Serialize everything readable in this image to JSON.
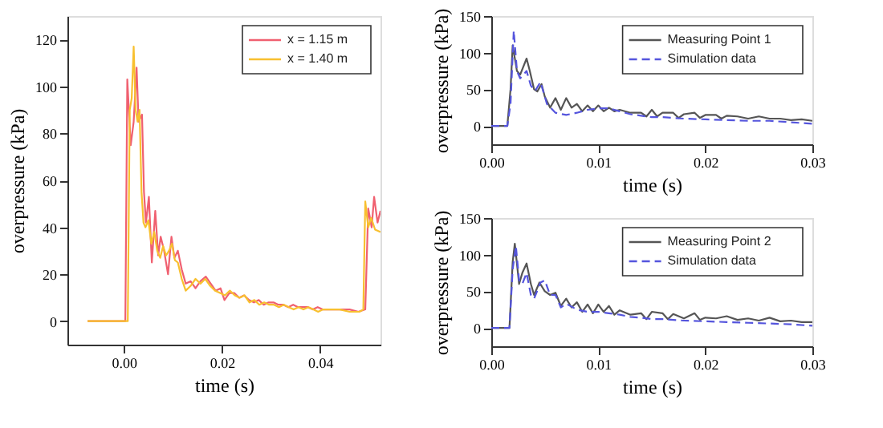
{
  "chart_data": [
    {
      "type": "line",
      "xlabel": "time (s)",
      "ylabel": "overpressure (kPa)",
      "xlim": [
        -0.0115,
        0.0523
      ],
      "ylim": [
        -10,
        130
      ],
      "xticks": [
        {
          "value": 0,
          "label": "0.00"
        },
        {
          "value": 0.02,
          "label": "0.02"
        },
        {
          "value": 0.04,
          "label": "0.04"
        }
      ],
      "yticks": [
        0,
        20,
        40,
        60,
        80,
        100,
        120
      ],
      "legend": "top right",
      "grid": false,
      "series": [
        {
          "name": "x = 1.15 m",
          "color": "#f06070",
          "line_style": "solid",
          "x": [
            -0.0074,
            0.0003,
            0.0007,
            0.0014,
            0.002,
            0.0026,
            0.003,
            0.0037,
            0.0041,
            0.0045,
            0.0051,
            0.0057,
            0.0064,
            0.007,
            0.0075,
            0.0082,
            0.009,
            0.0097,
            0.0103,
            0.011,
            0.0118,
            0.0126,
            0.0136,
            0.0146,
            0.0156,
            0.0167,
            0.0177,
            0.0187,
            0.0197,
            0.0205,
            0.0215,
            0.0225,
            0.0235,
            0.0245,
            0.0255,
            0.0265,
            0.0275,
            0.0285,
            0.0295,
            0.0305,
            0.0315,
            0.0325,
            0.0335,
            0.0345,
            0.0355,
            0.0365,
            0.0375,
            0.0385,
            0.0395,
            0.0405,
            0.042,
            0.044,
            0.046,
            0.0478,
            0.0492,
            0.0498,
            0.0505,
            0.051,
            0.0517,
            0.0523
          ],
          "values": [
            0,
            0,
            103,
            75,
            85,
            108,
            85,
            88,
            55,
            42,
            53,
            25,
            47,
            28,
            36,
            30,
            20,
            36,
            27,
            30,
            22,
            16,
            17,
            14,
            17,
            19,
            16,
            13,
            14,
            9,
            12,
            12,
            10,
            11,
            9,
            8,
            9,
            7,
            8,
            8,
            7,
            7,
            6,
            7,
            6,
            6,
            6,
            5,
            6,
            5,
            5,
            5,
            5,
            4,
            5,
            48,
            40,
            53,
            42,
            47
          ]
        },
        {
          "name": "x = 1.40 m",
          "color": "#f8c030",
          "line_style": "solid",
          "x": [
            -0.0074,
            0.0008,
            0.0012,
            0.0016,
            0.002,
            0.0024,
            0.0028,
            0.0032,
            0.0036,
            0.004,
            0.0044,
            0.005,
            0.0056,
            0.0062,
            0.0068,
            0.0074,
            0.008,
            0.0086,
            0.0092,
            0.0098,
            0.0104,
            0.011,
            0.0118,
            0.0126,
            0.0136,
            0.0146,
            0.0156,
            0.0166,
            0.0176,
            0.0186,
            0.0196,
            0.0206,
            0.0216,
            0.0226,
            0.0236,
            0.0246,
            0.0256,
            0.0266,
            0.0276,
            0.0286,
            0.0296,
            0.0306,
            0.0316,
            0.0326,
            0.0336,
            0.0346,
            0.0356,
            0.0366,
            0.0376,
            0.0386,
            0.0396,
            0.0406,
            0.042,
            0.044,
            0.046,
            0.048,
            0.0488,
            0.0492,
            0.0498,
            0.0504,
            0.0512,
            0.0523
          ],
          "values": [
            0,
            0,
            90,
            95,
            117,
            90,
            85,
            90,
            55,
            42,
            40,
            43,
            33,
            38,
            30,
            27,
            32,
            28,
            30,
            33,
            26,
            25,
            18,
            13,
            15,
            18,
            16,
            18,
            15,
            13,
            12,
            11,
            13,
            11,
            10,
            11,
            8,
            9,
            7,
            8,
            7,
            7,
            6,
            7,
            6,
            5,
            6,
            5,
            6,
            5,
            4,
            5,
            5,
            5,
            4,
            4,
            5,
            51,
            40,
            44,
            39,
            38
          ]
        }
      ]
    },
    {
      "type": "line",
      "xlabel": "time (s)",
      "ylabel": "overpressure (kPa)",
      "xlim": [
        0,
        0.03
      ],
      "ylim": [
        -25,
        150
      ],
      "xticks": [
        {
          "value": 0,
          "label": "0.00"
        },
        {
          "value": 0.01,
          "label": "0.01"
        },
        {
          "value": 0.02,
          "label": "0.02"
        },
        {
          "value": 0.03,
          "label": "0.03"
        }
      ],
      "yticks": [
        0,
        50,
        100,
        150
      ],
      "legend": "top right",
      "grid": false,
      "series": [
        {
          "name": "Measuring Point 1",
          "color": "#555555",
          "line_style": "solid",
          "x": [
            0,
            0.0015,
            0.0018,
            0.002,
            0.0024,
            0.0027,
            0.0033,
            0.0036,
            0.004,
            0.0043,
            0.0047,
            0.005,
            0.0055,
            0.006,
            0.0065,
            0.007,
            0.0075,
            0.008,
            0.0085,
            0.009,
            0.0095,
            0.01,
            0.0105,
            0.011,
            0.0115,
            0.012,
            0.013,
            0.014,
            0.0145,
            0.015,
            0.0155,
            0.016,
            0.017,
            0.0175,
            0.018,
            0.019,
            0.0195,
            0.02,
            0.021,
            0.0215,
            0.022,
            0.023,
            0.024,
            0.025,
            0.026,
            0.027,
            0.028,
            0.029,
            0.03
          ],
          "values": [
            0,
            0,
            50,
            110,
            75,
            70,
            92,
            75,
            50,
            47,
            57,
            40,
            25,
            38,
            22,
            38,
            25,
            30,
            20,
            28,
            20,
            28,
            20,
            25,
            20,
            22,
            18,
            18,
            13,
            22,
            13,
            18,
            18,
            11,
            16,
            18,
            11,
            15,
            15,
            10,
            14,
            13,
            10,
            13,
            10,
            10,
            8,
            9,
            7
          ]
        },
        {
          "name": "Simulation data",
          "color": "#5555dd",
          "line_style": "dashed",
          "x": [
            0,
            0.0015,
            0.0018,
            0.0021,
            0.0024,
            0.0027,
            0.0033,
            0.0037,
            0.0041,
            0.0046,
            0.0052,
            0.006,
            0.007,
            0.008,
            0.009,
            0.01,
            0.011,
            0.012,
            0.013,
            0.014,
            0.015,
            0.016,
            0.018,
            0.02,
            0.022,
            0.024,
            0.026,
            0.028,
            0.03
          ],
          "values": [
            0,
            0,
            30,
            130,
            75,
            65,
            75,
            55,
            48,
            60,
            30,
            18,
            15,
            18,
            22,
            24,
            24,
            20,
            16,
            14,
            12,
            12,
            10,
            9,
            8,
            7,
            7,
            5,
            3
          ]
        }
      ]
    },
    {
      "type": "line",
      "xlabel": "time (s)",
      "ylabel": "overpressure (kPa)",
      "xlim": [
        0,
        0.03
      ],
      "ylim": [
        -25,
        150
      ],
      "xticks": [
        {
          "value": 0,
          "label": "0.00"
        },
        {
          "value": 0.01,
          "label": "0.01"
        },
        {
          "value": 0.02,
          "label": "0.02"
        },
        {
          "value": 0.03,
          "label": "0.03"
        }
      ],
      "yticks": [
        0,
        50,
        100,
        150
      ],
      "legend": "top right",
      "grid": false,
      "series": [
        {
          "name": "Measuring Point 2",
          "color": "#555555",
          "line_style": "solid",
          "x": [
            0,
            0.0017,
            0.002,
            0.0022,
            0.0026,
            0.0029,
            0.0033,
            0.0037,
            0.004,
            0.0045,
            0.005,
            0.0055,
            0.006,
            0.0065,
            0.007,
            0.0075,
            0.008,
            0.0085,
            0.009,
            0.0095,
            0.01,
            0.0105,
            0.011,
            0.0115,
            0.012,
            0.013,
            0.014,
            0.0145,
            0.015,
            0.016,
            0.0165,
            0.017,
            0.018,
            0.019,
            0.0195,
            0.02,
            0.021,
            0.022,
            0.023,
            0.024,
            0.025,
            0.026,
            0.027,
            0.028,
            0.029,
            0.03
          ],
          "values": [
            0,
            0,
            90,
            115,
            60,
            75,
            88,
            60,
            45,
            62,
            50,
            45,
            48,
            30,
            40,
            28,
            35,
            22,
            32,
            20,
            32,
            22,
            30,
            18,
            24,
            18,
            20,
            12,
            22,
            20,
            12,
            19,
            13,
            20,
            11,
            14,
            13,
            16,
            11,
            13,
            10,
            14,
            9,
            10,
            8,
            8
          ]
        },
        {
          "name": "Simulation data",
          "color": "#5555dd",
          "line_style": "dashed",
          "x": [
            0,
            0.0017,
            0.002,
            0.0023,
            0.0026,
            0.0029,
            0.0033,
            0.0037,
            0.004,
            0.0046,
            0.005,
            0.0055,
            0.006,
            0.0065,
            0.007,
            0.008,
            0.009,
            0.01,
            0.011,
            0.012,
            0.013,
            0.014,
            0.015,
            0.016,
            0.018,
            0.02,
            0.022,
            0.024,
            0.026,
            0.028,
            0.03
          ],
          "values": [
            0,
            0,
            80,
            112,
            65,
            60,
            75,
            45,
            40,
            62,
            65,
            45,
            45,
            28,
            33,
            25,
            22,
            22,
            20,
            18,
            15,
            14,
            12,
            12,
            10,
            9,
            8,
            7,
            6,
            5,
            3
          ]
        }
      ]
    }
  ]
}
